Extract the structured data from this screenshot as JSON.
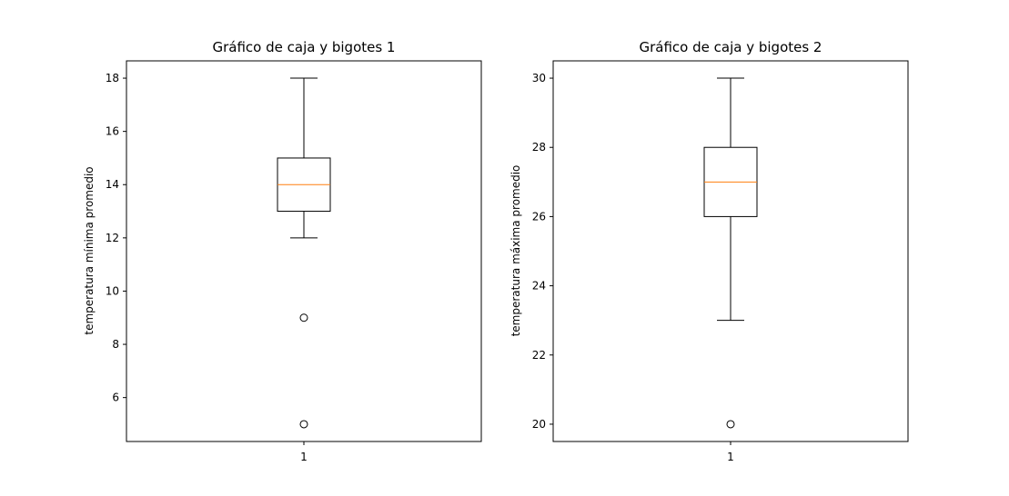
{
  "chart_data": [
    {
      "type": "boxplot",
      "title": "Gráfico de caja y bigotes 1",
      "xlabel": "",
      "ylabel": "temperatura mínima promedio",
      "categories": [
        "1"
      ],
      "ylim": [
        4.35,
        18.65
      ],
      "yticks": [
        6,
        8,
        10,
        12,
        14,
        16,
        18
      ],
      "grid": false,
      "box": {
        "whisker_low": 12,
        "q1": 13,
        "median": 14,
        "q3": 15,
        "whisker_high": 18,
        "outliers": [
          9,
          5
        ]
      },
      "colors": {
        "box": "#000000",
        "median": "#ff7f0e"
      }
    },
    {
      "type": "boxplot",
      "title": "Gráfico de caja y bigotes 2",
      "xlabel": "",
      "ylabel": "temperatura máxima promedio",
      "categories": [
        "1"
      ],
      "ylim": [
        19.5,
        30.5
      ],
      "yticks": [
        20,
        22,
        24,
        26,
        28,
        30
      ],
      "grid": false,
      "box": {
        "whisker_low": 23,
        "q1": 26,
        "median": 27,
        "q3": 28,
        "whisker_high": 30,
        "outliers": [
          20
        ]
      },
      "colors": {
        "box": "#000000",
        "median": "#ff7f0e"
      }
    }
  ]
}
